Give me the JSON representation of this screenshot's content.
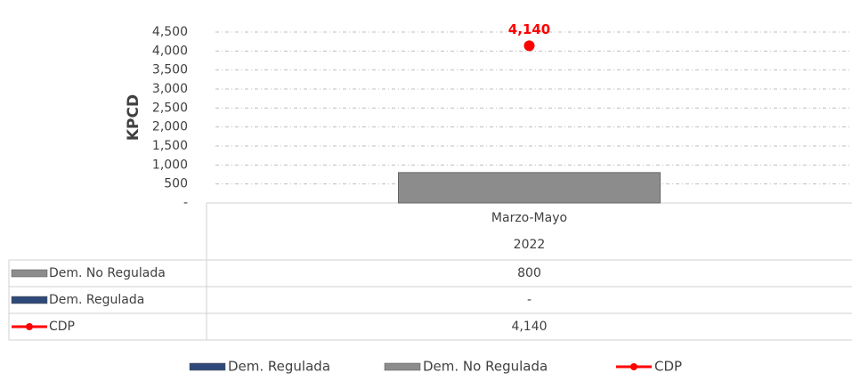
{
  "chart_data": {
    "type": "bar",
    "y_label": "KPCD",
    "categories": [
      "Marzo-Mayo"
    ],
    "category_group": "2022",
    "ylim": [
      0,
      4500
    ],
    "yticks": [
      {
        "value": 0,
        "label": "-"
      },
      500,
      {
        "value": 1000,
        "label": "1,000"
      },
      {
        "value": 1500,
        "label": "1,500"
      },
      {
        "value": 2000,
        "label": "2,000"
      },
      {
        "value": 2500,
        "label": "2,500"
      },
      {
        "value": 3000,
        "label": "3,000"
      },
      {
        "value": 3500,
        "label": "3,500"
      },
      {
        "value": 4000,
        "label": "4,000"
      },
      {
        "value": 4500,
        "label": "4,500"
      }
    ],
    "grid": true,
    "stacked": true,
    "series": [
      {
        "name": "Dem. Regulada",
        "type": "bar",
        "color": "#2f4a7a",
        "values": [
          0
        ],
        "value_labels": [
          "-"
        ]
      },
      {
        "name": "Dem. No Regulada",
        "type": "bar",
        "color": "#8c8c8c",
        "values": [
          800
        ],
        "value_labels": [
          "800"
        ]
      },
      {
        "name": "CDP",
        "type": "line",
        "color": "#ff0000",
        "values": [
          4140
        ],
        "value_labels": [
          "4,140"
        ]
      }
    ]
  }
}
